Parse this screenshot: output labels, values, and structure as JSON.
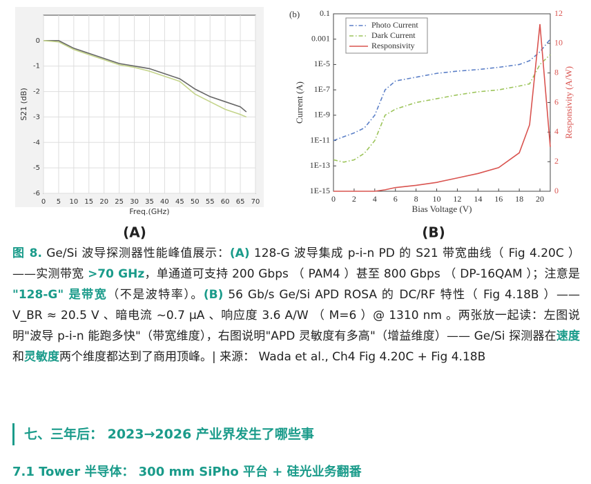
{
  "chart_data": [
    {
      "type": "line",
      "label": "(A)",
      "x_label": "Freq.(GHz)",
      "y_label": "S21 (dB)",
      "xlim": [
        0,
        70
      ],
      "xticks": [
        0,
        5,
        10,
        15,
        20,
        25,
        30,
        35,
        40,
        45,
        50,
        55,
        60,
        65,
        70
      ],
      "ylim": [
        -6,
        1
      ],
      "yticks": [
        0,
        -1,
        -2,
        -3,
        -4,
        -5,
        -6
      ],
      "grid": true,
      "x": [
        0,
        5,
        10,
        15,
        20,
        25,
        30,
        35,
        40,
        45,
        50,
        55,
        60,
        65,
        67
      ],
      "series": [
        {
          "color": "#666666",
          "values": [
            0,
            0,
            -0.3,
            -0.5,
            -0.7,
            -0.9,
            -1.0,
            -1.1,
            -1.3,
            -1.5,
            -1.9,
            -2.2,
            -2.4,
            -2.6,
            -2.8
          ]
        },
        {
          "color": "#c4d48a",
          "values": [
            0,
            -0.05,
            -0.35,
            -0.55,
            -0.75,
            -0.95,
            -1.05,
            -1.2,
            -1.4,
            -1.6,
            -2.1,
            -2.4,
            -2.7,
            -2.9,
            -3.0
          ]
        }
      ]
    },
    {
      "type": "line",
      "label": "(B)",
      "panel": "(b)",
      "x_label": "Bias Voltage (V)",
      "y_label": "Current (A)",
      "y2_label": "Responsivity (A/W)",
      "xlim": [
        0,
        21
      ],
      "xticks": [
        0,
        2,
        4,
        6,
        8,
        10,
        12,
        14,
        16,
        18,
        20
      ],
      "ylog": true,
      "ylim": [
        1e-15,
        0.1
      ],
      "yticks": [
        {
          "value": 1e-15,
          "label": "1E-15"
        },
        {
          "value": 1e-13,
          "label": "1E-13"
        },
        {
          "value": 1e-11,
          "label": "1E-11"
        },
        {
          "value": 1e-09,
          "label": "1E-9"
        },
        {
          "value": 1e-07,
          "label": "1E-7"
        },
        {
          "value": 1e-05,
          "label": "1E-5"
        },
        0.001,
        0.1
      ],
      "y2lim": [
        0,
        12
      ],
      "y2ticks": [
        0,
        2,
        4,
        6,
        8,
        10,
        12
      ],
      "grid": false,
      "legend": "upper left",
      "x": [
        0,
        1,
        2,
        3,
        4,
        5,
        6,
        8,
        10,
        12,
        14,
        16,
        18,
        19,
        20,
        21
      ],
      "series": [
        {
          "name": "Photo Current",
          "color": "#5b7fc7",
          "dash": "dash-dot",
          "values": [
            1e-11,
            2e-11,
            4e-11,
            1e-10,
            1e-09,
            1e-07,
            5e-07,
            1e-06,
            2e-06,
            3e-06,
            4e-06,
            6e-06,
            1e-05,
            2e-05,
            0.0001,
            0.001
          ]
        },
        {
          "name": "Dark Current",
          "color": "#9cc45a",
          "dash": "dash-dot",
          "values": [
            3e-13,
            2e-13,
            3e-13,
            1e-12,
            1e-11,
            1e-09,
            3e-09,
            1e-08,
            2e-08,
            4e-08,
            7e-08,
            1e-07,
            2e-07,
            3e-07,
            1e-05,
            6e-05
          ]
        },
        {
          "name": "Responsivity",
          "color": "#d9534f",
          "axis": "y2",
          "values": [
            0,
            0,
            0,
            0,
            0,
            0.1,
            0.25,
            0.4,
            0.6,
            0.9,
            1.2,
            1.6,
            2.6,
            4.5,
            11.3,
            3
          ]
        }
      ]
    }
  ],
  "caption": [
    "图 8.",
    "Ge/Si 波导探测器性能峰值展示：",
    "(A)",
    " 128-G 波导集成 p-i-n PD 的 S21 带宽曲线（ Fig 4.20C ）——实测带宽 ",
    ">70 GHz",
    "，单通道可支持 200 Gbps （ PAM4 ）甚至 800 Gbps （ DP-16QAM ）；注意是 ",
    "\"128-G\" 是带宽",
    "（不是波特率）。",
    "(B)",
    " 56 Gb/s Ge/Si APD ROSA 的 DC/RF 特性（ Fig 4.18B ）——V_BR ≈ 20.5 V 、暗电流 ~0.7 μA 、响应度 3.6 A/W （ M=6 ）@ 1310 nm 。两张放一起读：左图说明\"波导 p-i-n 能跑多快\"（带宽维度），右图说明\"APD 灵敏度有多高\"（增益维度）—— Ge/Si 探测器在",
    "速度",
    "和",
    "灵敏度",
    "两个维度都达到了商用顶峰。| 来源： Wada et al., Ch4 Fig 4.20C + Fig 4.18B"
  ],
  "section": {
    "title": "七、三年后： 2023→2026 产业界发生了哪些事",
    "subsection": "7.1 Tower 半导体： 300 mm SiPho 平台 + 硅光业务翻番"
  }
}
